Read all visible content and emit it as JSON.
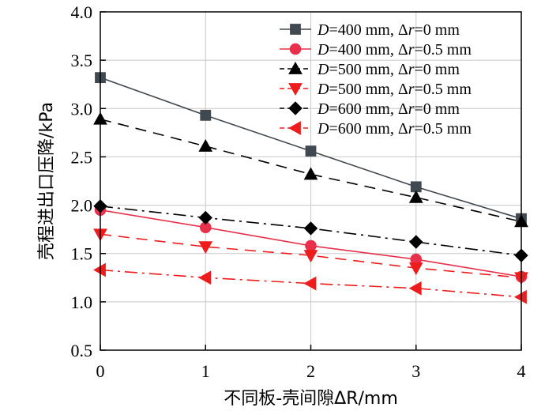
{
  "chart_data": {
    "type": "line",
    "title": "",
    "xlabel": "不同板-壳间隙ΔR/mm",
    "ylabel": "壳程进出口压降/kPa",
    "xlim": [
      0,
      4
    ],
    "ylim": [
      0.5,
      4.0
    ],
    "x_ticks": [
      "0",
      "1",
      "2",
      "3",
      "4"
    ],
    "y_ticks": [
      "0.5",
      "1.0",
      "1.5",
      "2.0",
      "2.5",
      "3.0",
      "3.5",
      "4.0"
    ],
    "grid": true,
    "legend_position": "top-right",
    "x": [
      0,
      1,
      2,
      3,
      4
    ],
    "series": [
      {
        "name": "D=400 mm, Δr=0 mm",
        "parts": [
          "D",
          "=400 mm, Δ",
          "r",
          "=0 mm"
        ],
        "values": [
          3.32,
          2.93,
          2.56,
          2.19,
          1.86
        ],
        "color": "#404850",
        "marker": "square",
        "dash": "solid"
      },
      {
        "name": "D=400 mm, Δr=0.5 mm",
        "parts": [
          "D",
          "=400 mm, Δ",
          "r",
          "=0.5 mm"
        ],
        "values": [
          1.95,
          1.77,
          1.58,
          1.44,
          1.26
        ],
        "color": "#e8304a",
        "marker": "circle",
        "dash": "solid"
      },
      {
        "name": "D=500 mm, Δr=0 mm",
        "parts": [
          "D",
          "=500 mm, Δ",
          "r",
          "=0 mm"
        ],
        "values": [
          2.89,
          2.61,
          2.32,
          2.08,
          1.83
        ],
        "color": "#000000",
        "marker": "triangle-up",
        "dash": "dash"
      },
      {
        "name": "D=500 mm, Δr=0.5 mm",
        "parts": [
          "D",
          "=500 mm, Δ",
          "r",
          "=0.5 mm"
        ],
        "values": [
          1.7,
          1.57,
          1.48,
          1.35,
          1.25
        ],
        "color": "#ee1c1c",
        "marker": "triangle-down",
        "dash": "dash"
      },
      {
        "name": "D=600 mm, Δr=0 mm",
        "parts": [
          "D",
          "=600 mm, Δ",
          "r",
          "=0 mm"
        ],
        "values": [
          1.99,
          1.87,
          1.76,
          1.62,
          1.48
        ],
        "color": "#000000",
        "marker": "diamond",
        "dash": "dashdot"
      },
      {
        "name": "D=600 mm, Δr=0.5 mm",
        "parts": [
          "D",
          "=600 mm, Δ",
          "r",
          "=0.5 mm"
        ],
        "values": [
          1.33,
          1.25,
          1.19,
          1.14,
          1.05
        ],
        "color": "#ee1c1c",
        "marker": "triangle-left",
        "dash": "dashdot"
      }
    ]
  }
}
